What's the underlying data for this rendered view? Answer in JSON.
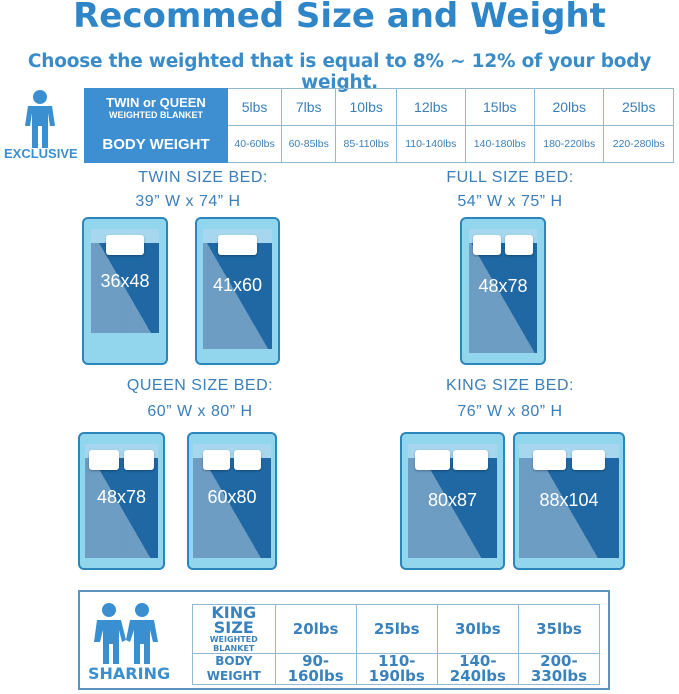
{
  "title": "Recommed Size and Weight",
  "subtitle": "Choose the weighted that is equal to 8% ~ 12% of your body weight.",
  "exclusive": {
    "label": "EXCLUSIVE",
    "icon": "person-icon",
    "header_main": "TWIN or QUEEN",
    "header_sub": "WEIGHTED BLANKET",
    "row2_header": "BODY WEIGHT",
    "weights": [
      "5lbs",
      "7lbs",
      "10lbs",
      "12lbs",
      "15lbs",
      "20lbs",
      "25lbs"
    ],
    "body_weights": [
      "40-60lbs",
      "60-85lbs",
      "85-110lbs",
      "110-140lbs",
      "140-180lbs",
      "180-220lbs",
      "220-280lbs"
    ]
  },
  "beds": {
    "twin": {
      "title": "TWIN SIZE BED:",
      "dims": "39” W x 74” H",
      "sizes": [
        "36x48",
        "41x60"
      ]
    },
    "full": {
      "title": "FULL SIZE BED:",
      "dims": "54” W x 75” H",
      "sizes": [
        "48x78"
      ]
    },
    "queen": {
      "title": "QUEEN SIZE BED:",
      "dims": "60” W x 80” H",
      "sizes": [
        "48x78",
        "60x80"
      ]
    },
    "king": {
      "title": "KING SIZE BED:",
      "dims": "76” W x 80” H",
      "sizes": [
        "80x87",
        "88x104"
      ]
    }
  },
  "sharing": {
    "label": "SHARING",
    "icon": "two-people-icon",
    "header_main": "KING SIZE",
    "header_sub": "WEIGHTED BLANKET",
    "row2_header": "BODY WEIGHT",
    "weights": [
      "20lbs",
      "25lbs",
      "30lbs",
      "35lbs"
    ],
    "body_weights": [
      "90-160lbs",
      "110-190lbs",
      "140-240lbs",
      "200-330lbs"
    ]
  },
  "colors": {
    "accent": "#2e86c8",
    "header_fill": "#3d8fd1",
    "mattress": "#1f68a3",
    "frame": "#92d6ee"
  }
}
